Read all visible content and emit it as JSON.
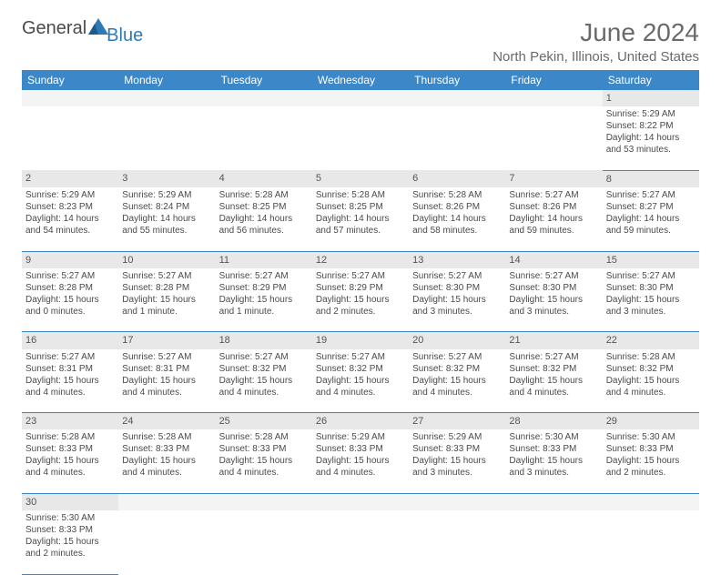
{
  "logo": {
    "word1": "General",
    "word2": "Blue"
  },
  "title": "June 2024",
  "location": "North Pekin, Illinois, United States",
  "colors": {
    "header_bg": "#3b87c8",
    "header_fg": "#ffffff",
    "daynum_bg": "#e8e8e8",
    "border": "#3b87c8",
    "text": "#4a4a4a",
    "title": "#6a6a6a"
  },
  "day_names": [
    "Sunday",
    "Monday",
    "Tuesday",
    "Wednesday",
    "Thursday",
    "Friday",
    "Saturday"
  ],
  "weeks": [
    [
      null,
      null,
      null,
      null,
      null,
      null,
      {
        "n": "1",
        "sr": "Sunrise: 5:29 AM",
        "ss": "Sunset: 8:22 PM",
        "d1": "Daylight: 14 hours",
        "d2": "and 53 minutes."
      }
    ],
    [
      {
        "n": "2",
        "sr": "Sunrise: 5:29 AM",
        "ss": "Sunset: 8:23 PM",
        "d1": "Daylight: 14 hours",
        "d2": "and 54 minutes."
      },
      {
        "n": "3",
        "sr": "Sunrise: 5:29 AM",
        "ss": "Sunset: 8:24 PM",
        "d1": "Daylight: 14 hours",
        "d2": "and 55 minutes."
      },
      {
        "n": "4",
        "sr": "Sunrise: 5:28 AM",
        "ss": "Sunset: 8:25 PM",
        "d1": "Daylight: 14 hours",
        "d2": "and 56 minutes."
      },
      {
        "n": "5",
        "sr": "Sunrise: 5:28 AM",
        "ss": "Sunset: 8:25 PM",
        "d1": "Daylight: 14 hours",
        "d2": "and 57 minutes."
      },
      {
        "n": "6",
        "sr": "Sunrise: 5:28 AM",
        "ss": "Sunset: 8:26 PM",
        "d1": "Daylight: 14 hours",
        "d2": "and 58 minutes."
      },
      {
        "n": "7",
        "sr": "Sunrise: 5:27 AM",
        "ss": "Sunset: 8:26 PM",
        "d1": "Daylight: 14 hours",
        "d2": "and 59 minutes."
      },
      {
        "n": "8",
        "sr": "Sunrise: 5:27 AM",
        "ss": "Sunset: 8:27 PM",
        "d1": "Daylight: 14 hours",
        "d2": "and 59 minutes."
      }
    ],
    [
      {
        "n": "9",
        "sr": "Sunrise: 5:27 AM",
        "ss": "Sunset: 8:28 PM",
        "d1": "Daylight: 15 hours",
        "d2": "and 0 minutes."
      },
      {
        "n": "10",
        "sr": "Sunrise: 5:27 AM",
        "ss": "Sunset: 8:28 PM",
        "d1": "Daylight: 15 hours",
        "d2": "and 1 minute."
      },
      {
        "n": "11",
        "sr": "Sunrise: 5:27 AM",
        "ss": "Sunset: 8:29 PM",
        "d1": "Daylight: 15 hours",
        "d2": "and 1 minute."
      },
      {
        "n": "12",
        "sr": "Sunrise: 5:27 AM",
        "ss": "Sunset: 8:29 PM",
        "d1": "Daylight: 15 hours",
        "d2": "and 2 minutes."
      },
      {
        "n": "13",
        "sr": "Sunrise: 5:27 AM",
        "ss": "Sunset: 8:30 PM",
        "d1": "Daylight: 15 hours",
        "d2": "and 3 minutes."
      },
      {
        "n": "14",
        "sr": "Sunrise: 5:27 AM",
        "ss": "Sunset: 8:30 PM",
        "d1": "Daylight: 15 hours",
        "d2": "and 3 minutes."
      },
      {
        "n": "15",
        "sr": "Sunrise: 5:27 AM",
        "ss": "Sunset: 8:30 PM",
        "d1": "Daylight: 15 hours",
        "d2": "and 3 minutes."
      }
    ],
    [
      {
        "n": "16",
        "sr": "Sunrise: 5:27 AM",
        "ss": "Sunset: 8:31 PM",
        "d1": "Daylight: 15 hours",
        "d2": "and 4 minutes."
      },
      {
        "n": "17",
        "sr": "Sunrise: 5:27 AM",
        "ss": "Sunset: 8:31 PM",
        "d1": "Daylight: 15 hours",
        "d2": "and 4 minutes."
      },
      {
        "n": "18",
        "sr": "Sunrise: 5:27 AM",
        "ss": "Sunset: 8:32 PM",
        "d1": "Daylight: 15 hours",
        "d2": "and 4 minutes."
      },
      {
        "n": "19",
        "sr": "Sunrise: 5:27 AM",
        "ss": "Sunset: 8:32 PM",
        "d1": "Daylight: 15 hours",
        "d2": "and 4 minutes."
      },
      {
        "n": "20",
        "sr": "Sunrise: 5:27 AM",
        "ss": "Sunset: 8:32 PM",
        "d1": "Daylight: 15 hours",
        "d2": "and 4 minutes."
      },
      {
        "n": "21",
        "sr": "Sunrise: 5:27 AM",
        "ss": "Sunset: 8:32 PM",
        "d1": "Daylight: 15 hours",
        "d2": "and 4 minutes."
      },
      {
        "n": "22",
        "sr": "Sunrise: 5:28 AM",
        "ss": "Sunset: 8:32 PM",
        "d1": "Daylight: 15 hours",
        "d2": "and 4 minutes."
      }
    ],
    [
      {
        "n": "23",
        "sr": "Sunrise: 5:28 AM",
        "ss": "Sunset: 8:33 PM",
        "d1": "Daylight: 15 hours",
        "d2": "and 4 minutes."
      },
      {
        "n": "24",
        "sr": "Sunrise: 5:28 AM",
        "ss": "Sunset: 8:33 PM",
        "d1": "Daylight: 15 hours",
        "d2": "and 4 minutes."
      },
      {
        "n": "25",
        "sr": "Sunrise: 5:28 AM",
        "ss": "Sunset: 8:33 PM",
        "d1": "Daylight: 15 hours",
        "d2": "and 4 minutes."
      },
      {
        "n": "26",
        "sr": "Sunrise: 5:29 AM",
        "ss": "Sunset: 8:33 PM",
        "d1": "Daylight: 15 hours",
        "d2": "and 4 minutes."
      },
      {
        "n": "27",
        "sr": "Sunrise: 5:29 AM",
        "ss": "Sunset: 8:33 PM",
        "d1": "Daylight: 15 hours",
        "d2": "and 3 minutes."
      },
      {
        "n": "28",
        "sr": "Sunrise: 5:30 AM",
        "ss": "Sunset: 8:33 PM",
        "d1": "Daylight: 15 hours",
        "d2": "and 3 minutes."
      },
      {
        "n": "29",
        "sr": "Sunrise: 5:30 AM",
        "ss": "Sunset: 8:33 PM",
        "d1": "Daylight: 15 hours",
        "d2": "and 2 minutes."
      }
    ],
    [
      {
        "n": "30",
        "sr": "Sunrise: 5:30 AM",
        "ss": "Sunset: 8:33 PM",
        "d1": "Daylight: 15 hours",
        "d2": "and 2 minutes."
      },
      null,
      null,
      null,
      null,
      null,
      null
    ]
  ]
}
